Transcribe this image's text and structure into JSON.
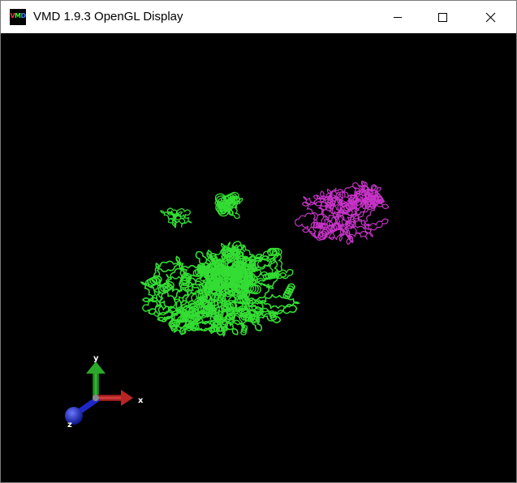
{
  "window": {
    "title": "VMD 1.9.3 OpenGL Display",
    "icon": "vmd-app-icon"
  },
  "controls": {
    "minimize": "minimize-icon",
    "maximize": "maximize-icon",
    "close": "close-icon"
  },
  "display": {
    "background_color": "#000000",
    "molecules": [
      {
        "name": "green-protein-chain",
        "color": "#33dd33"
      },
      {
        "name": "magenta-protein-chain",
        "color": "#c833c8"
      }
    ],
    "axes": {
      "x_label": "x",
      "y_label": "y",
      "z_label": "z",
      "x_color": "#c81e1e",
      "y_color": "#1e9b1e",
      "z_color": "#1e28c8"
    }
  }
}
